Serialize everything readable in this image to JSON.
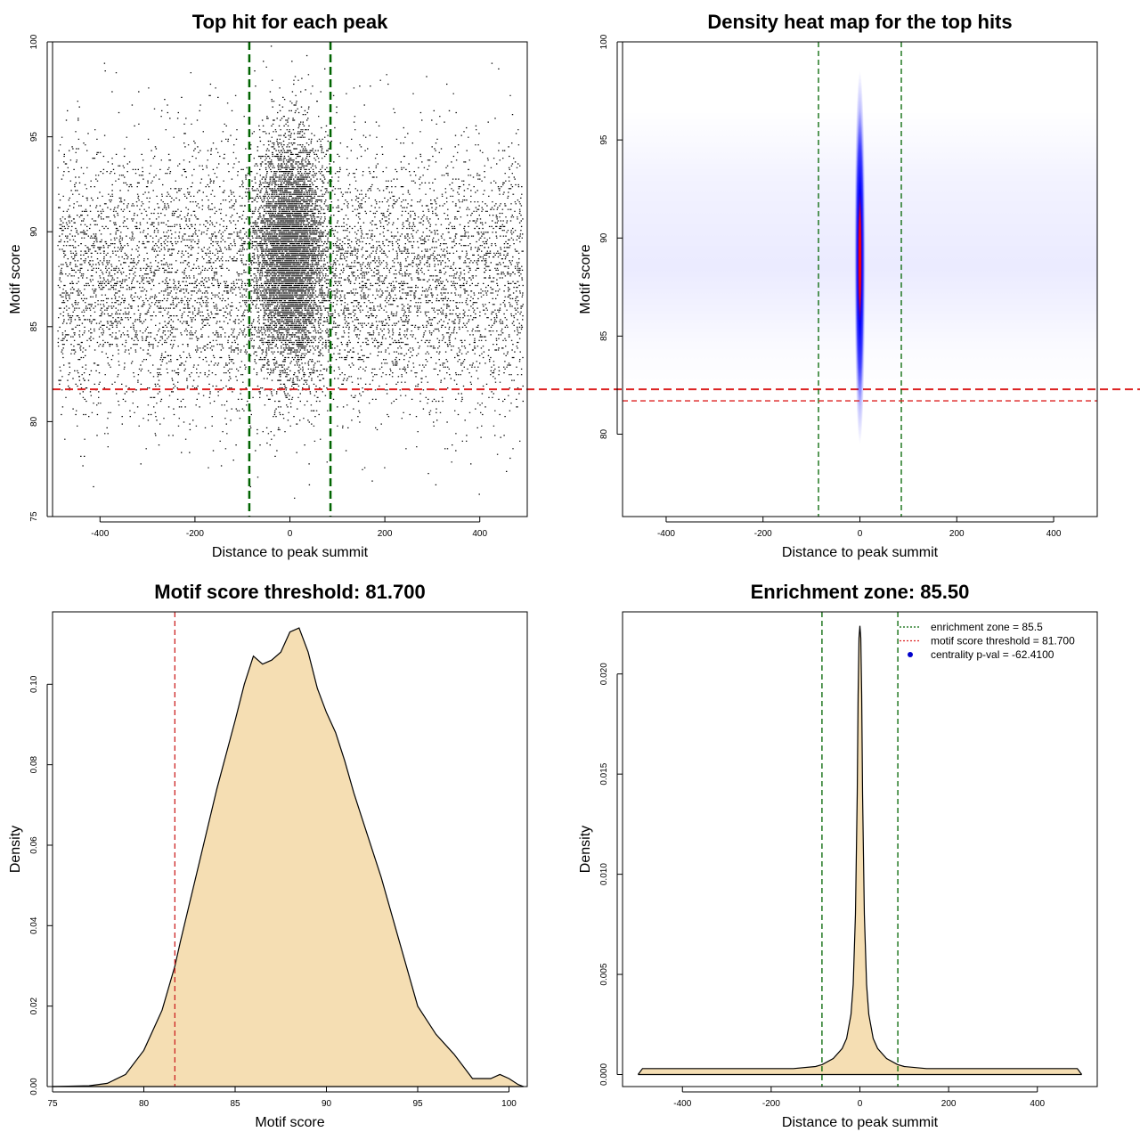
{
  "chart_data": [
    {
      "type": "scatter",
      "title": "Top hit for each peak",
      "xlabel": "Distance to peak summit",
      "ylabel": "Motif score",
      "xlim": [
        -500,
        500
      ],
      "ylim": [
        75,
        100
      ],
      "xticks": [
        -400,
        -200,
        0,
        200,
        400
      ],
      "yticks": [
        75,
        80,
        85,
        90,
        95,
        100
      ],
      "xtick_labels": [
        "-400",
        "-200",
        "0",
        "200",
        "400"
      ],
      "ytick_labels": [
        "75",
        "80",
        "85",
        "90",
        "95",
        "100"
      ],
      "vlines": [
        -85.5,
        85.5
      ],
      "hline": 81.7,
      "distribution": {
        "x_range": [
          -490,
          490
        ],
        "central_sd": 35,
        "central_fraction": 0.45,
        "score_peak": 88,
        "score_spread": 3.5
      },
      "colors": {
        "points": "#000000",
        "vlines": "#006400",
        "hline": "#dd2222"
      }
    },
    {
      "type": "heatmap",
      "title": "Density heat map for the top hits",
      "xlabel": "Distance to peak summit",
      "ylabel": "Motif score",
      "xlim": [
        -490,
        490
      ],
      "ylim": [
        75.8,
        100
      ],
      "xticks": [
        -400,
        -200,
        0,
        200,
        400
      ],
      "yticks": [
        80,
        85,
        90,
        95,
        100
      ],
      "xtick_labels": [
        "-400",
        "-200",
        "0",
        "200",
        "400"
      ],
      "ytick_labels": [
        "80",
        "85",
        "90",
        "95",
        "100"
      ],
      "vlines": [
        -85.5,
        85.5
      ],
      "hline": 81.7,
      "hotspot": {
        "x": 0,
        "y": 89,
        "x_sd": 6,
        "y_sd": 2.8
      },
      "colors": {
        "low": "#ffffff",
        "mid": "#0000ff",
        "high": "#ff0000",
        "vlines": "#006400",
        "hline": "#dd2222"
      }
    },
    {
      "type": "area",
      "title": "Motif score threshold: 81.700",
      "xlabel": "Motif score",
      "ylabel": "Density",
      "xlim": [
        75,
        101
      ],
      "ylim": [
        0,
        0.118
      ],
      "xticks": [
        75,
        80,
        85,
        90,
        95,
        100
      ],
      "yticks": [
        0,
        0.02,
        0.04,
        0.06,
        0.08,
        0.1
      ],
      "xtick_labels": [
        "75",
        "80",
        "85",
        "90",
        "95",
        "100"
      ],
      "ytick_labels": [
        "0.00",
        "0.02",
        "0.04",
        "0.06",
        "0.08",
        "0.10"
      ],
      "vline": 81.7,
      "x": [
        75,
        77,
        78,
        79,
        80,
        81,
        81.7,
        82,
        83,
        84,
        85,
        85.5,
        86,
        86.5,
        87,
        87.5,
        88,
        88.5,
        89,
        89.5,
        90,
        90.5,
        91,
        91.5,
        92,
        93,
        94,
        95,
        96,
        97,
        98,
        99,
        99.5,
        100,
        100.5,
        100.8
      ],
      "y": [
        0,
        0.0002,
        0.0008,
        0.003,
        0.009,
        0.019,
        0.03,
        0.036,
        0.055,
        0.074,
        0.091,
        0.1,
        0.107,
        0.105,
        0.106,
        0.108,
        0.113,
        0.114,
        0.108,
        0.099,
        0.093,
        0.088,
        0.081,
        0.073,
        0.066,
        0.052,
        0.036,
        0.02,
        0.013,
        0.008,
        0.002,
        0.002,
        0.003,
        0.002,
        0.0005,
        0
      ],
      "colors": {
        "fill": "#f5deb3",
        "line": "#000000",
        "vline": "#cc2222"
      }
    },
    {
      "type": "area",
      "title": "Enrichment zone: 85.50",
      "xlabel": "Distance to peak summit",
      "ylabel": "Density",
      "xlim": [
        -535,
        535
      ],
      "ylim": [
        -0.0006,
        0.0231
      ],
      "xticks": [
        -400,
        -200,
        0,
        200,
        400
      ],
      "yticks": [
        0,
        0.005,
        0.01,
        0.015,
        0.02
      ],
      "xtick_labels": [
        "-400",
        "-200",
        "0",
        "200",
        "400"
      ],
      "ytick_labels": [
        "0.000",
        "0.005",
        "0.010",
        "0.015",
        "0.020"
      ],
      "vlines": [
        -85.5,
        85.5
      ],
      "x": [
        -500,
        -490,
        -400,
        -300,
        -200,
        -150,
        -100,
        -85,
        -60,
        -40,
        -30,
        -20,
        -15,
        -10,
        -6,
        -4,
        -2,
        0,
        2,
        4,
        6,
        10,
        15,
        20,
        30,
        40,
        60,
        85,
        100,
        150,
        200,
        300,
        400,
        490,
        500
      ],
      "y": [
        0,
        0.0003,
        0.0003,
        0.0003,
        0.0003,
        0.0003,
        0.0004,
        0.0005,
        0.0008,
        0.0013,
        0.0018,
        0.003,
        0.0045,
        0.008,
        0.014,
        0.019,
        0.0218,
        0.0224,
        0.0218,
        0.019,
        0.014,
        0.008,
        0.0045,
        0.003,
        0.0018,
        0.0013,
        0.0008,
        0.0005,
        0.0004,
        0.0003,
        0.0003,
        0.0003,
        0.0003,
        0.0003,
        0
      ],
      "legend": [
        {
          "label": "enrichment zone = 85.5",
          "style": "dotted-line",
          "color": "#006400"
        },
        {
          "label": "motif score threshold = 81.700",
          "style": "dotted-line",
          "color": "#dd2222"
        },
        {
          "label": "centrality p-val = -62.4100",
          "style": "point",
          "color": "#0000cc"
        }
      ],
      "legend_position": "top-right",
      "colors": {
        "fill": "#f5deb3",
        "line": "#000000",
        "vlines": "#006400"
      }
    }
  ]
}
